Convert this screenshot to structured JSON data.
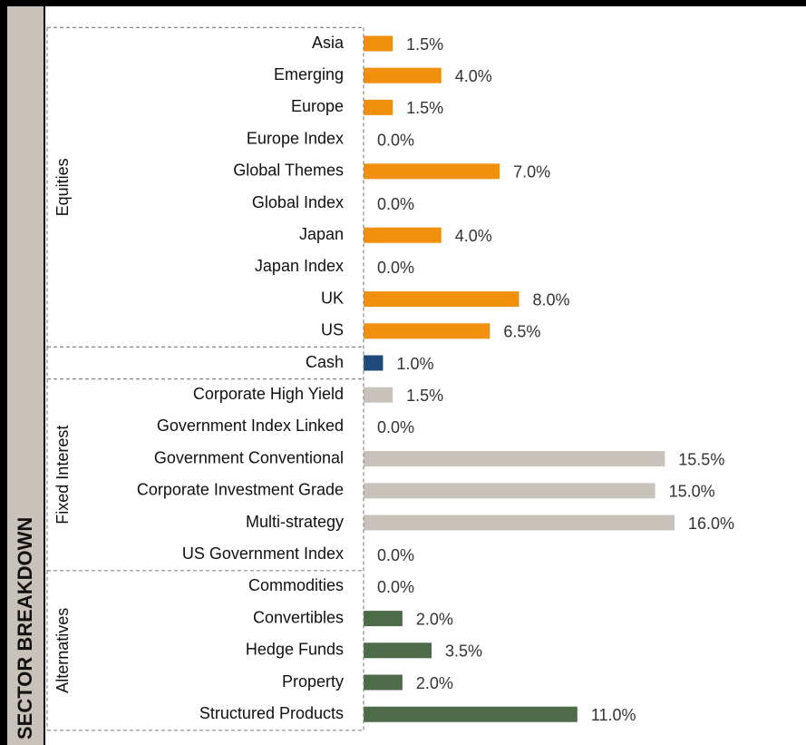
{
  "chart_data": {
    "type": "bar",
    "orientation": "horizontal",
    "title": "SECTOR BREAKDOWN",
    "xlim": [
      0,
      16
    ],
    "series": [
      {
        "name": "Equities",
        "color": "#f0900c",
        "categories": [
          "Asia",
          "Emerging",
          "Europe",
          "Europe Index",
          "Global Themes",
          "Global Index",
          "Japan",
          "Japan Index",
          "UK",
          "US"
        ],
        "values": [
          1.5,
          4.0,
          1.5,
          0.0,
          7.0,
          0.0,
          4.0,
          0.0,
          8.0,
          6.5
        ],
        "value_labels": [
          "1.5%",
          "4.0%",
          "1.5%",
          "0.0%",
          "7.0%",
          "0.0%",
          "4.0%",
          "0.0%",
          "8.0%",
          "6.5%"
        ]
      },
      {
        "color": "#1e4b7c",
        "categories": [
          "Cash"
        ],
        "values": [
          1.0
        ],
        "value_labels": [
          "1.0%"
        ]
      },
      {
        "name": "Fixed Interest",
        "color": "#c9c2ba",
        "categories": [
          "Corporate High Yield",
          "Government Index Linked",
          "Government Conventional",
          "Corporate Investment Grade",
          "Multi-strategy",
          "US Government Index"
        ],
        "values": [
          1.5,
          0.0,
          15.5,
          15.0,
          16.0,
          0.0
        ],
        "value_labels": [
          "1.5%",
          "0.0%",
          "15.5%",
          "15.0%",
          "16.0%",
          "0.0%"
        ]
      },
      {
        "name": "Alternatives",
        "color": "#4d6b49",
        "categories": [
          "Commodities",
          "Convertibles",
          "Hedge Funds",
          "Property",
          "Structured Products"
        ],
        "values": [
          0.0,
          2.0,
          3.5,
          2.0,
          11.0
        ],
        "value_labels": [
          "0.0%",
          "2.0%",
          "3.5%",
          "2.0%",
          "11.0%"
        ]
      }
    ]
  }
}
